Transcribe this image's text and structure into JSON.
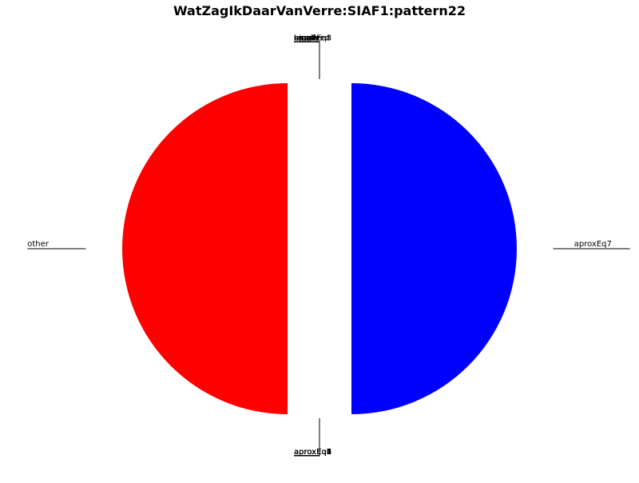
{
  "chart_data": {
    "type": "pie",
    "title": "WatZagIkDaarVanVerre:SIAF1:pattern22",
    "slices": [
      {
        "label": "other",
        "value": 50,
        "color": "#ff0000",
        "explode": true
      },
      {
        "label": "aproxEq1",
        "value": 0
      },
      {
        "label": "aproxEq2",
        "value": 0
      },
      {
        "label": "aproxEq3",
        "value": 0
      },
      {
        "label": "aproxEq4",
        "value": 0
      },
      {
        "label": "aproxEq5",
        "value": 0
      },
      {
        "label": "aproxEq6",
        "value": 0
      },
      {
        "label": "aproxEq7",
        "value": 50,
        "color": "#0000ff",
        "explode": true
      },
      {
        "label": "aproxEq8",
        "value": 0
      },
      {
        "label": "bigger",
        "value": 0
      },
      {
        "label": "smaller",
        "value": 0
      },
      {
        "label": "equal",
        "value": 0
      },
      {
        "label": "exact",
        "value": 0
      },
      {
        "label": "empty",
        "value": 0
      },
      {
        "label": "unsolved",
        "value": 0
      }
    ],
    "legend": "none"
  }
}
